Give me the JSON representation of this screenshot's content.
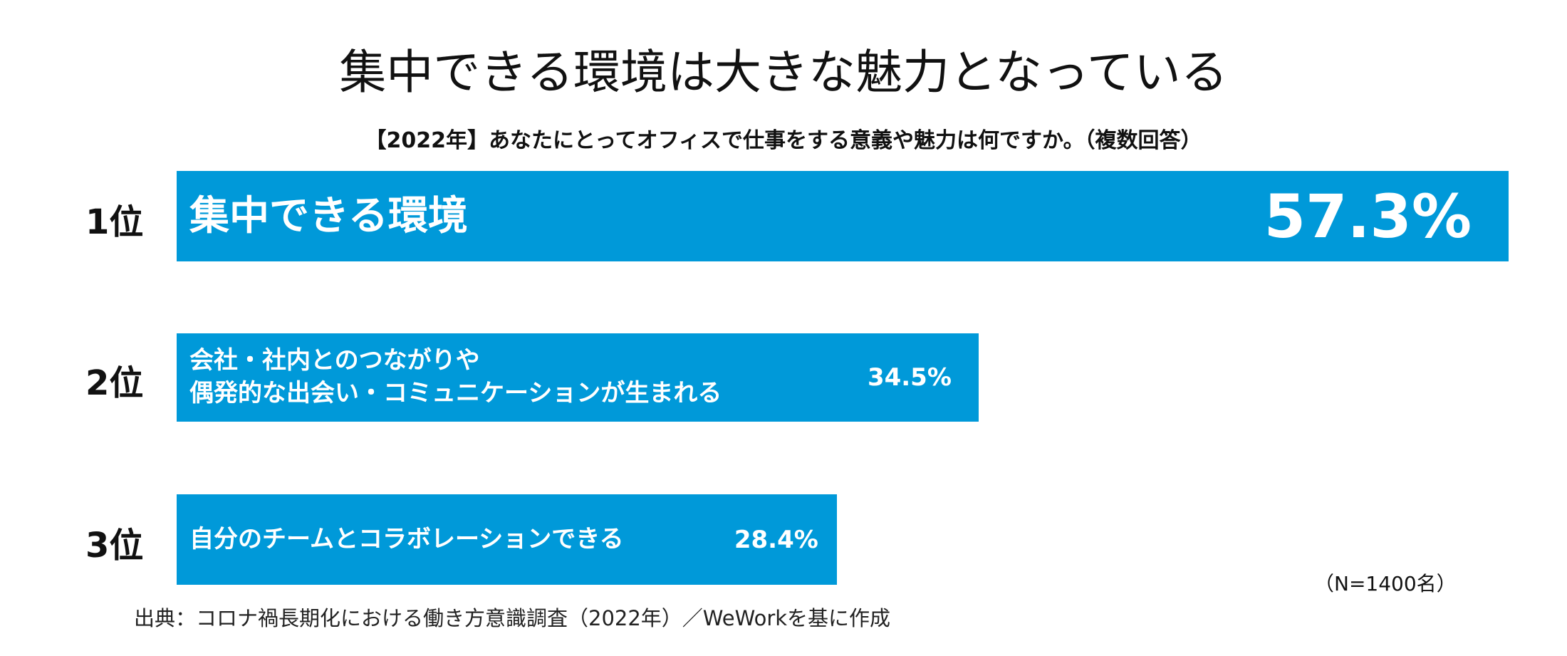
{
  "chart_data": {
    "type": "bar",
    "orientation": "horizontal",
    "title": "集中できる環境は大きな魅力となっている",
    "subtitle": "【2022年】あなたにとってオフィスで仕事をする意義や魅力は何ですか。（複数回答）",
    "ranks": [
      "1位",
      "2位",
      "3位"
    ],
    "categories": [
      "集中できる環境",
      "会社・社内とのつながりや\n偶発的な出会い・コミュニケーションが生まれる",
      "自分のチームとコラボレーションできる"
    ],
    "values": [
      57.3,
      34.5,
      28.4
    ],
    "value_labels": [
      "57.3%",
      "34.5%",
      "28.4%"
    ],
    "unit": "%",
    "note": "（N=1400名）",
    "source": "出典：コロナ禍長期化における働き方意識調査（2022年）／WeWorkを基に作成",
    "bar_color": "#0099D9"
  }
}
